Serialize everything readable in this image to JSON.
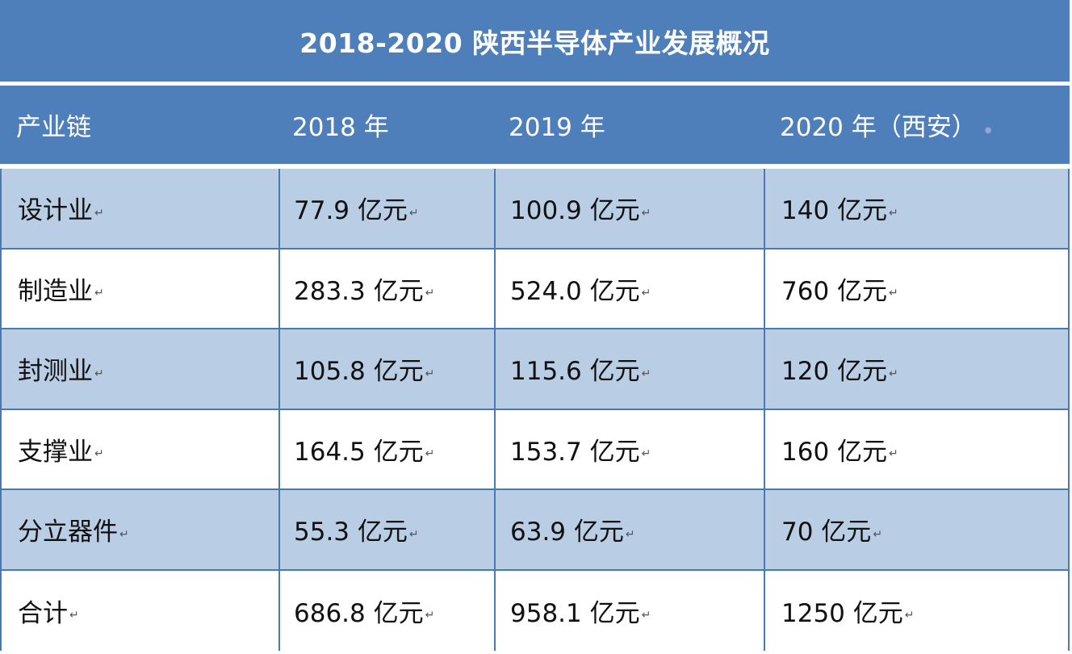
{
  "title": "2018-2020 陕西半导体产业发展概况",
  "header": {
    "columns": [
      "产业链",
      "2018 年",
      "2019 年",
      "2020 年（西安）"
    ]
  },
  "paragraph_mark": "↵",
  "rows": [
    {
      "label": "设计业",
      "values": [
        "77.9 亿元",
        "100.9 亿元",
        "140 亿元"
      ],
      "shaded": true
    },
    {
      "label": "制造业",
      "values": [
        "283.3 亿元",
        "524.0 亿元",
        "760 亿元"
      ],
      "shaded": false
    },
    {
      "label": "封测业",
      "values": [
        "105.8 亿元",
        "115.6 亿元",
        "120 亿元"
      ],
      "shaded": true
    },
    {
      "label": "支撑业",
      "values": [
        "164.5 亿元",
        "153.7 亿元",
        "160 亿元"
      ],
      "shaded": false
    },
    {
      "label": "分立器件",
      "values": [
        "55.3 亿元",
        "63.9 亿元",
        "70 亿元"
      ],
      "shaded": true
    },
    {
      "label": "合计",
      "values": [
        "686.8 亿元",
        "958.1 亿元",
        "1250 亿元"
      ],
      "shaded": false
    }
  ],
  "colors": {
    "header_bg": "#4f7fba",
    "header_text": "#ffffff",
    "row_shaded": "#b9cde5",
    "row_plain": "#ffffff",
    "grid_line": "#4a78b0"
  },
  "chart_data": {
    "type": "table",
    "title": "2018-2020 陕西半导体产业发展概况",
    "columns": [
      "产业链",
      "2018 年",
      "2019 年",
      "2020 年（西安）"
    ],
    "unit": "亿元",
    "categories": [
      "设计业",
      "制造业",
      "封测业",
      "支撑业",
      "分立器件",
      "合计"
    ],
    "series": [
      {
        "name": "2018 年",
        "values": [
          77.9,
          283.3,
          105.8,
          164.5,
          55.3,
          686.8
        ]
      },
      {
        "name": "2019 年",
        "values": [
          100.9,
          524.0,
          115.6,
          153.7,
          63.9,
          958.1
        ]
      },
      {
        "name": "2020 年（西安）",
        "values": [
          140,
          760,
          120,
          160,
          70,
          1250
        ]
      }
    ]
  }
}
